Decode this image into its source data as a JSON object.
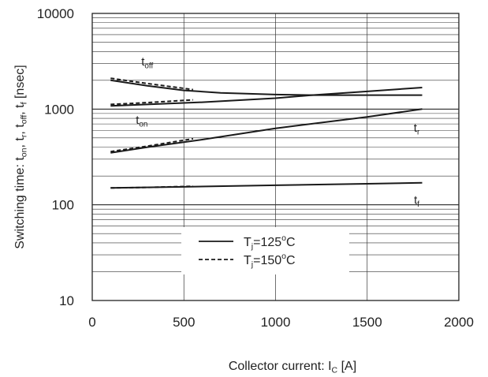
{
  "chart_data": {
    "type": "line",
    "xlabel_main": "Collector current: I",
    "xlabel_sub": "C",
    "xlabel_unit": " [A]",
    "ylabel_parts": [
      {
        "t": "Switching time: t",
        "sub": false
      },
      {
        "t": "on",
        "sub": true
      },
      {
        "t": ", t",
        "sub": false
      },
      {
        "t": "r",
        "sub": true
      },
      {
        "t": ", t",
        "sub": false
      },
      {
        "t": "off",
        "sub": true
      },
      {
        "t": ", t",
        "sub": false
      },
      {
        "t": "f",
        "sub": true
      },
      {
        "t": " [nsec]",
        "sub": false
      }
    ],
    "x_ticks": [
      "0",
      "500",
      "1000",
      "1500",
      "2000"
    ],
    "y_ticks": [
      "10",
      "100",
      "1000",
      "10000"
    ],
    "xlim": [
      0,
      2000
    ],
    "ylim": [
      10,
      10000
    ],
    "yscale": "log",
    "grid": true,
    "legend": {
      "placement": "center-bottom",
      "entries": [
        {
          "style": "solid",
          "parts": [
            {
              "t": "T",
              "sub": false
            },
            {
              "t": "j",
              "sub": true
            },
            {
              "t": "=125",
              "sub": false
            },
            {
              "t": "o",
              "sup": true
            },
            {
              "t": "C",
              "sub": false
            }
          ]
        },
        {
          "style": "dashed",
          "parts": [
            {
              "t": "T",
              "sub": false
            },
            {
              "t": "j",
              "sub": true
            },
            {
              "t": "=150",
              "sub": false
            },
            {
              "t": "o",
              "sup": true
            },
            {
              "t": "C",
              "sub": false
            }
          ]
        }
      ]
    },
    "curve_labels": [
      {
        "main": "t",
        "sub": "off",
        "x": 300,
        "y": 2850
      },
      {
        "main": "t",
        "sub": "on",
        "x": 270,
        "y": 700
      },
      {
        "main": "t",
        "sub": "r",
        "x": 1770,
        "y": 580
      },
      {
        "main": "t",
        "sub": "f",
        "x": 1770,
        "y": 102
      }
    ],
    "series": [
      {
        "curve": "toff",
        "style": "solid",
        "x": [
          100,
          300,
          500,
          700,
          1000,
          1200,
          1500,
          1800
        ],
        "y": [
          2000,
          1750,
          1570,
          1480,
          1420,
          1400,
          1400,
          1400
        ]
      },
      {
        "curve": "toff",
        "style": "dashed",
        "x": [
          100,
          300,
          550
        ],
        "y": [
          2100,
          1850,
          1600
        ]
      },
      {
        "curve": "ton",
        "style": "solid",
        "x": [
          100,
          300,
          600,
          1000,
          1200,
          1500,
          1800
        ],
        "y": [
          1080,
          1120,
          1180,
          1300,
          1400,
          1530,
          1680
        ]
      },
      {
        "curve": "ton",
        "style": "dashed",
        "x": [
          100,
          300,
          550
        ],
        "y": [
          1120,
          1170,
          1250
        ]
      },
      {
        "curve": "tr",
        "style": "solid",
        "x": [
          100,
          300,
          600,
          1000,
          1500,
          1800
        ],
        "y": [
          350,
          400,
          480,
          630,
          830,
          1000
        ]
      },
      {
        "curve": "tr",
        "style": "dashed",
        "x": [
          100,
          300,
          550
        ],
        "y": [
          360,
          410,
          490
        ]
      },
      {
        "curve": "tf",
        "style": "solid",
        "x": [
          100,
          500,
          1000,
          1500,
          1800
        ],
        "y": [
          150,
          154,
          160,
          166,
          170
        ]
      },
      {
        "curve": "tf",
        "style": "dashed",
        "x": [
          100,
          300,
          550
        ],
        "y": [
          150,
          152,
          156
        ]
      }
    ]
  }
}
